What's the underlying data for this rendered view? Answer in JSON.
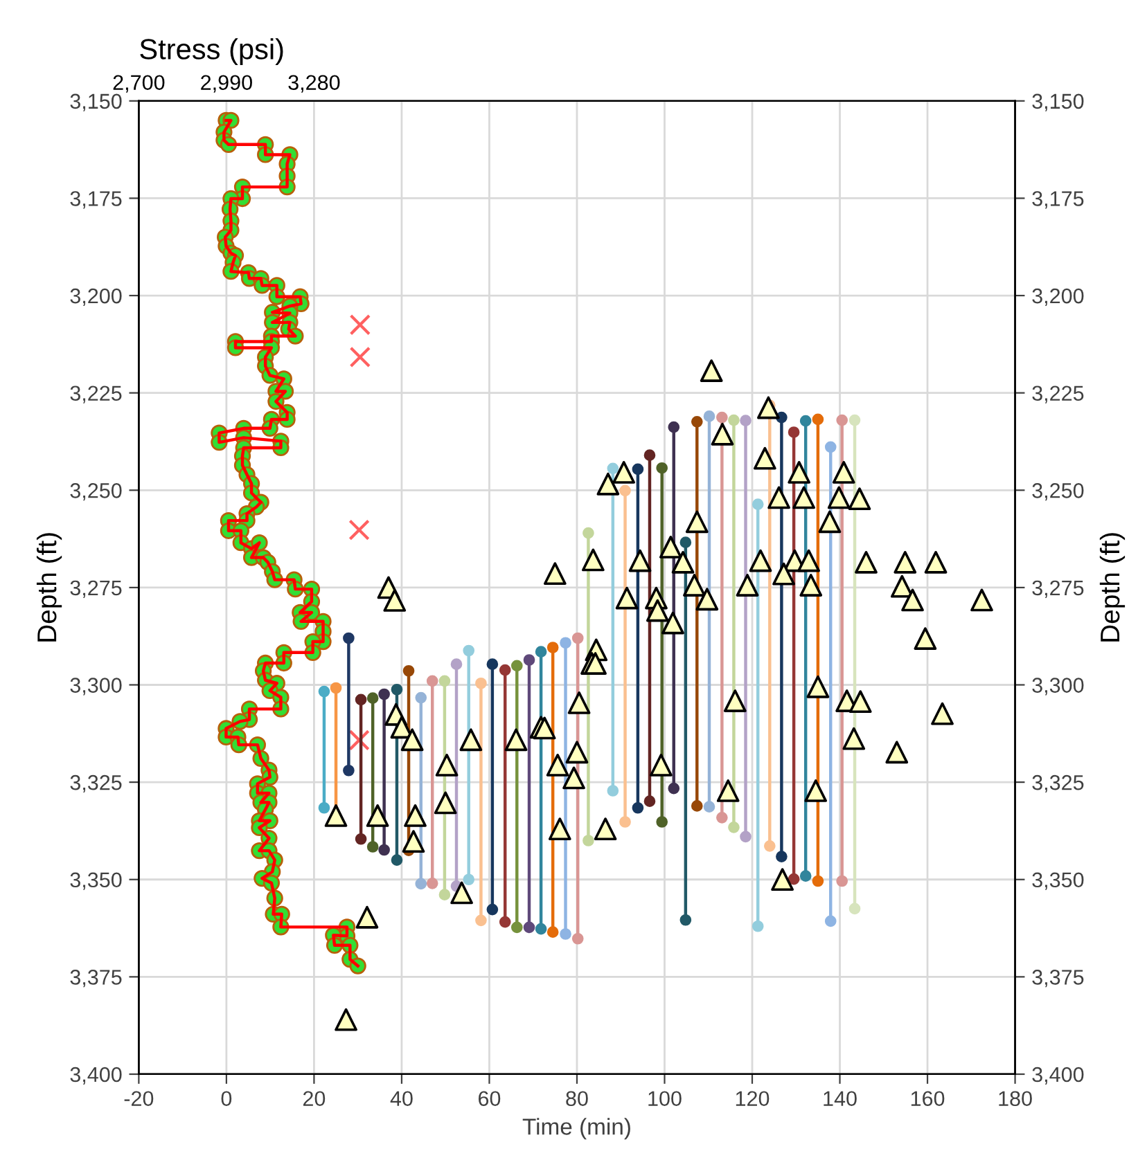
{
  "chart_data": {
    "type": "scatter",
    "xlabel": "Time (min)",
    "ylabel": "Depth (ft)",
    "y2label": "Depth (ft)",
    "x2label": "Stress (psi)",
    "xlim": [
      -20,
      180
    ],
    "xticks": [
      -20,
      0,
      20,
      40,
      60,
      80,
      100,
      120,
      140,
      160,
      180
    ],
    "ylim": [
      3400,
      3150
    ],
    "yticks": [
      {
        "value": 3150,
        "label": "3,150"
      },
      {
        "value": 3175,
        "label": "3,175"
      },
      {
        "value": 3200,
        "label": "3,200"
      },
      {
        "value": 3225,
        "label": "3,225"
      },
      {
        "value": 3250,
        "label": "3,250"
      },
      {
        "value": 3275,
        "label": "3,275"
      },
      {
        "value": 3300,
        "label": "3,300"
      },
      {
        "value": 3325,
        "label": "3,325"
      },
      {
        "value": 3350,
        "label": "3,350"
      },
      {
        "value": 3375,
        "label": "3,375"
      },
      {
        "value": 3400,
        "label": "3,400"
      }
    ],
    "y2lim": [
      3400,
      3150
    ],
    "y2ticks": [
      {
        "value": 3150,
        "label": "3,150"
      },
      {
        "value": 3175,
        "label": "3,175"
      },
      {
        "value": 3200,
        "label": "3,200"
      },
      {
        "value": 3225,
        "label": "3,225"
      },
      {
        "value": 3250,
        "label": "3,250"
      },
      {
        "value": 3275,
        "label": "3,275"
      },
      {
        "value": 3300,
        "label": "3,300"
      },
      {
        "value": 3325,
        "label": "3,325"
      },
      {
        "value": 3350,
        "label": "3,350"
      },
      {
        "value": 3375,
        "label": "3,375"
      },
      {
        "value": 3400,
        "label": "3,400"
      }
    ],
    "x2lim": [
      2700,
      5600
    ],
    "x2ticks": [
      {
        "value": 2700,
        "label": "2,700"
      },
      {
        "value": 2990,
        "label": "2,990"
      },
      {
        "value": 3280,
        "label": "3,280"
      }
    ],
    "grid": true,
    "series": [
      {
        "type": "scatter",
        "axis": "x2",
        "color": "#33dd33",
        "marker": "circle",
        "x": [
          2989,
          3005,
          2982,
          2982,
          2997,
          3119,
          3119,
          3200,
          3191,
          3191,
          3191,
          3043,
          3043,
          3005,
          3002,
          3005,
          3005,
          2986,
          2989,
          3005,
          3020,
          3012,
          3005,
          3063,
          3066,
          3104,
          3108,
          3157,
          3157,
          3234,
          3237,
          3200,
          3142,
          3200,
          3142,
          3200,
          3196,
          3218,
          3139,
          3139,
          3020,
          3020,
          3139,
          3119,
          3119,
          3134,
          3180,
          3154,
          3185,
          3154,
          3191,
          3191,
          3139,
          3134,
          3047,
          2966,
          2966,
          3047,
          3170,
          3170,
          3047,
          3043,
          3043,
          3058,
          3073,
          3073,
          3104,
          3089,
          3058,
          3058,
          2997,
          2997,
          3038,
          3038,
          3073,
          3099,
          3073,
          3112,
          3127,
          3142,
          3150,
          3214,
          3218,
          3272,
          3272,
          3234,
          3272,
          3237,
          3310,
          3310,
          3310,
          3276,
          3276,
          3180,
          3180,
          3119,
          3112,
          3119,
          3157,
          3134,
          3170,
          3170,
          3066,
          3066,
          3035,
          2989,
          2989,
          3028,
          3031,
          3093,
          3104,
          3131,
          3134,
          3093,
          3093,
          3131,
          3104,
          3131,
          3119,
          3099,
          3134,
          3099,
          3131,
          3099,
          3131,
          3150,
          3142,
          3108,
          3139,
          3150,
          3145,
          3173,
          3170,
          3389,
          3389,
          3344,
          3348,
          3399,
          3399,
          3425
        ],
        "values": [
          3155.0,
          3155.0,
          3158.0,
          3160.1,
          3161.2,
          3161.2,
          3163.8,
          3163.8,
          3166.2,
          3169.3,
          3172.1,
          3172.1,
          3175.1,
          3175.1,
          3177.8,
          3180.8,
          3183.2,
          3185.0,
          3187.3,
          3189.1,
          3189.7,
          3191.5,
          3193.8,
          3194.1,
          3195.6,
          3195.6,
          3197.4,
          3197.4,
          3200.3,
          3200.3,
          3202.1,
          3202.7,
          3204.3,
          3204.5,
          3206.9,
          3206.9,
          3208.6,
          3210.4,
          3210.4,
          3211.8,
          3211.8,
          3213.4,
          3213.4,
          3215.8,
          3218.1,
          3220.5,
          3221.4,
          3224.6,
          3224.6,
          3227.2,
          3230.0,
          3231.8,
          3231.8,
          3234.1,
          3234.1,
          3235.3,
          3237.7,
          3236.5,
          3237.4,
          3239.1,
          3239.1,
          3241.2,
          3243.6,
          3246.0,
          3248.3,
          3250.7,
          3253.1,
          3254.3,
          3256.0,
          3257.8,
          3257.8,
          3260.4,
          3260.4,
          3263.5,
          3265.0,
          3263.5,
          3267.3,
          3267.3,
          3268.5,
          3270.9,
          3273.0,
          3273.0,
          3275.4,
          3275.4,
          3278.6,
          3281.4,
          3281.4,
          3283.7,
          3283.7,
          3286.3,
          3288.9,
          3288.9,
          3291.7,
          3291.7,
          3294.4,
          3294.4,
          3296.4,
          3298.8,
          3299.6,
          3301.5,
          3303.2,
          3306.2,
          3306.2,
          3308.9,
          3309.4,
          3311.2,
          3313.4,
          3313.4,
          3315.4,
          3315.4,
          3318.9,
          3321.9,
          3323.7,
          3325.4,
          3327.8,
          3327.8,
          3330.2,
          3330.2,
          3332.0,
          3334.9,
          3334.9,
          3336.7,
          3339.4,
          3342.6,
          3342.6,
          3345.0,
          3348.0,
          3349.7,
          3350.9,
          3354.8,
          3358.9,
          3358.9,
          3362.2,
          3362.2,
          3364.5,
          3364.3,
          3366.9,
          3366.9,
          3370.5,
          3372.2
        ]
      },
      {
        "type": "line",
        "axis": "x2",
        "color": "#ff0000",
        "x": [
          2989,
          3005,
          2982,
          2982,
          2997,
          3119,
          3119,
          3200,
          3191,
          3191,
          3191,
          3043,
          3043,
          3005,
          3002,
          3005,
          3005,
          2986,
          2989,
          3005,
          3020,
          3012,
          3005,
          3063,
          3066,
          3104,
          3108,
          3157,
          3157,
          3234,
          3237,
          3200,
          3142,
          3200,
          3142,
          3200,
          3196,
          3218,
          3139,
          3139,
          3020,
          3020,
          3139,
          3119,
          3119,
          3134,
          3180,
          3154,
          3185,
          3154,
          3191,
          3191,
          3139,
          3134,
          3047,
          2966,
          2966,
          3047,
          3170,
          3170,
          3047,
          3043,
          3043,
          3058,
          3073,
          3073,
          3104,
          3089,
          3058,
          3058,
          2997,
          2997,
          3038,
          3038,
          3073,
          3099,
          3073,
          3112,
          3127,
          3142,
          3150,
          3214,
          3218,
          3272,
          3272,
          3234,
          3272,
          3237,
          3310,
          3310,
          3310,
          3276,
          3276,
          3180,
          3180,
          3119,
          3112,
          3119,
          3157,
          3134,
          3170,
          3170,
          3066,
          3066,
          3035,
          2989,
          2989,
          3028,
          3031,
          3093,
          3104,
          3131,
          3134,
          3093,
          3093,
          3131,
          3104,
          3131,
          3119,
          3099,
          3134,
          3099,
          3131,
          3099,
          3131,
          3150,
          3142,
          3108,
          3139,
          3150,
          3145,
          3173,
          3170,
          3389,
          3389,
          3344,
          3348,
          3399,
          3399,
          3425
        ],
        "values": [
          3155.0,
          3155.0,
          3158.0,
          3160.1,
          3161.2,
          3161.2,
          3163.8,
          3163.8,
          3166.2,
          3169.3,
          3172.1,
          3172.1,
          3175.1,
          3175.1,
          3177.8,
          3180.8,
          3183.2,
          3185.0,
          3187.3,
          3189.1,
          3189.7,
          3191.5,
          3193.8,
          3194.1,
          3195.6,
          3195.6,
          3197.4,
          3197.4,
          3200.3,
          3200.3,
          3202.1,
          3202.7,
          3204.3,
          3204.5,
          3206.9,
          3206.9,
          3208.6,
          3210.4,
          3210.4,
          3211.8,
          3211.8,
          3213.4,
          3213.4,
          3215.8,
          3218.1,
          3220.5,
          3221.4,
          3224.6,
          3224.6,
          3227.2,
          3230.0,
          3231.8,
          3231.8,
          3234.1,
          3234.1,
          3235.3,
          3237.7,
          3236.5,
          3237.4,
          3239.1,
          3239.1,
          3241.2,
          3243.6,
          3246.0,
          3248.3,
          3250.7,
          3253.1,
          3254.3,
          3256.0,
          3257.8,
          3257.8,
          3260.4,
          3260.4,
          3263.5,
          3265.0,
          3263.5,
          3267.3,
          3267.3,
          3268.5,
          3270.9,
          3273.0,
          3273.0,
          3275.4,
          3275.4,
          3278.6,
          3281.4,
          3281.4,
          3283.7,
          3283.7,
          3286.3,
          3288.9,
          3288.9,
          3291.7,
          3291.7,
          3294.4,
          3294.4,
          3296.4,
          3298.8,
          3299.6,
          3301.5,
          3303.2,
          3306.2,
          3306.2,
          3308.9,
          3309.4,
          3311.2,
          3313.4,
          3313.4,
          3315.4,
          3315.4,
          3318.9,
          3321.9,
          3323.7,
          3325.4,
          3327.8,
          3327.8,
          3330.2,
          3330.2,
          3332.0,
          3334.9,
          3334.9,
          3336.7,
          3339.4,
          3342.6,
          3342.6,
          3345.0,
          3348.0,
          3349.7,
          3350.9,
          3354.8,
          3358.9,
          3358.9,
          3362.2,
          3362.2,
          3364.5,
          3364.3,
          3366.9,
          3366.9,
          3370.5,
          3372.2
        ]
      },
      {
        "color": "#ff6060",
        "marker": "cross",
        "x": [
          30.5,
          30.5,
          30.3,
          30.3
        ],
        "values": [
          3207.5,
          3215.8,
          3260.2,
          3314.2
        ]
      },
      {
        "type": "line",
        "color": "#4bacc6",
        "marker": "circle",
        "x": [
          22.3,
          22.3
        ],
        "values": [
          3301.7,
          3331.6
        ]
      },
      {
        "type": "line",
        "color": "#f79646",
        "marker": "circle",
        "x": [
          25.0,
          25.0
        ],
        "values": [
          3300.8,
          3333.9
        ]
      },
      {
        "type": "line",
        "color": "#1f3864",
        "marker": "circle",
        "x": [
          27.9,
          27.9
        ],
        "values": [
          3288.0,
          3322.0
        ]
      },
      {
        "type": "line",
        "color": "#632523",
        "marker": "circle",
        "x": [
          30.7,
          30.7
        ],
        "values": [
          3303.8,
          3339.6
        ]
      },
      {
        "type": "line",
        "color": "#4f6228",
        "marker": "circle",
        "x": [
          33.4,
          33.4
        ],
        "values": [
          3303.4,
          3341.6
        ]
      },
      {
        "type": "line",
        "color": "#3f3151",
        "marker": "circle",
        "x": [
          36.0,
          36.0
        ],
        "values": [
          3302.4,
          3342.4
        ]
      },
      {
        "type": "line",
        "color": "#215967",
        "marker": "circle",
        "x": [
          38.9,
          38.9
        ],
        "values": [
          3301.2,
          3345.0
        ]
      },
      {
        "type": "line",
        "color": "#984807",
        "marker": "circle",
        "x": [
          41.6,
          41.6
        ],
        "values": [
          3296.4,
          3342.5
        ]
      },
      {
        "type": "line",
        "color": "#95b3d7",
        "marker": "circle",
        "x": [
          44.4,
          44.4
        ],
        "values": [
          3303.3,
          3351.1
        ]
      },
      {
        "type": "line",
        "color": "#d99694",
        "marker": "circle",
        "x": [
          47.0,
          47.0
        ],
        "values": [
          3299.0,
          3351.0
        ]
      },
      {
        "type": "line",
        "color": "#c3d69b",
        "marker": "circle",
        "x": [
          49.8,
          49.8
        ],
        "values": [
          3299.0,
          3353.9
        ]
      },
      {
        "type": "line",
        "color": "#b3a2c7",
        "marker": "circle",
        "x": [
          52.5,
          52.5
        ],
        "values": [
          3294.7,
          3351.7
        ]
      },
      {
        "type": "line",
        "color": "#93cddd",
        "marker": "circle",
        "x": [
          55.3,
          55.3
        ],
        "values": [
          3291.2,
          3350.0
        ]
      },
      {
        "type": "line",
        "color": "#fac090",
        "marker": "circle",
        "x": [
          58.1,
          58.1
        ],
        "values": [
          3299.6,
          3360.5
        ]
      },
      {
        "type": "line",
        "color": "#17375e",
        "marker": "circle",
        "x": [
          60.7,
          60.7
        ],
        "values": [
          3294.7,
          3357.7
        ]
      },
      {
        "type": "line",
        "color": "#953735",
        "marker": "circle",
        "x": [
          63.6,
          63.6
        ],
        "values": [
          3296.2,
          3360.9
        ]
      },
      {
        "type": "line",
        "color": "#76923c",
        "marker": "circle",
        "x": [
          66.3,
          66.3
        ],
        "values": [
          3295.1,
          3362.3
        ]
      },
      {
        "type": "line",
        "color": "#5f497a",
        "marker": "circle",
        "x": [
          69.1,
          69.1
        ],
        "values": [
          3293.6,
          3362.3
        ]
      },
      {
        "type": "line",
        "color": "#31859c",
        "marker": "circle",
        "x": [
          71.8,
          71.8
        ],
        "values": [
          3291.5,
          3362.7
        ]
      },
      {
        "type": "line",
        "color": "#e46c0a",
        "marker": "circle",
        "x": [
          74.5,
          74.5
        ],
        "values": [
          3290.4,
          3363.5
        ]
      },
      {
        "type": "line",
        "color": "#8eb4e3",
        "marker": "circle",
        "x": [
          77.4,
          77.4
        ],
        "values": [
          3289.2,
          3364.0
        ]
      },
      {
        "type": "line",
        "color": "#d99694",
        "marker": "circle",
        "x": [
          80.2,
          80.2
        ],
        "values": [
          3288.0,
          3365.2
        ]
      },
      {
        "type": "line",
        "color": "#c3d69b",
        "marker": "circle",
        "x": [
          82.6,
          82.6
        ],
        "values": [
          3261.0,
          3340.0
        ]
      },
      {
        "type": "line",
        "color": "#93cddd",
        "marker": "circle",
        "x": [
          88.2,
          88.2
        ],
        "values": [
          3244.4,
          3327.2
        ]
      },
      {
        "type": "line",
        "color": "#fac090",
        "marker": "circle",
        "x": [
          91.0,
          91.0
        ],
        "values": [
          3250.1,
          3335.2
        ]
      },
      {
        "type": "line",
        "color": "#17375e",
        "marker": "circle",
        "x": [
          93.9,
          93.9
        ],
        "values": [
          3244.6,
          3331.6
        ]
      },
      {
        "type": "line",
        "color": "#632523",
        "marker": "circle",
        "x": [
          96.6,
          96.6
        ],
        "values": [
          3241.0,
          3329.9
        ]
      },
      {
        "type": "line",
        "color": "#4f6228",
        "marker": "circle",
        "x": [
          99.4,
          99.4
        ],
        "values": [
          3244.3,
          3335.2
        ]
      },
      {
        "type": "line",
        "color": "#3f3151",
        "marker": "circle",
        "x": [
          102.1,
          102.1
        ],
        "values": [
          3233.8,
          3326.6
        ]
      },
      {
        "type": "line",
        "color": "#215967",
        "marker": "circle",
        "x": [
          104.8,
          104.8
        ],
        "values": [
          3263.4,
          3360.4
        ]
      },
      {
        "type": "line",
        "color": "#984807",
        "marker": "circle",
        "x": [
          107.4,
          107.4
        ],
        "values": [
          3232.4,
          3331.1
        ]
      },
      {
        "type": "line",
        "color": "#95b3d7",
        "marker": "circle",
        "x": [
          110.2,
          110.2
        ],
        "values": [
          3231.0,
          3331.3
        ]
      },
      {
        "type": "line",
        "color": "#d99694",
        "marker": "circle",
        "x": [
          113.1,
          113.1
        ],
        "values": [
          3231.3,
          3334.1
        ]
      },
      {
        "type": "line",
        "color": "#c3d69b",
        "marker": "circle",
        "x": [
          115.8,
          115.8
        ],
        "values": [
          3232.0,
          3336.6
        ]
      },
      {
        "type": "line",
        "color": "#b3a2c7",
        "marker": "circle",
        "x": [
          118.5,
          118.5
        ],
        "values": [
          3232.1,
          3339.0
        ]
      },
      {
        "type": "line",
        "color": "#93cddd",
        "marker": "circle",
        "x": [
          121.3,
          121.3
        ],
        "values": [
          3253.6,
          3362.0
        ]
      },
      {
        "type": "line",
        "color": "#fac090",
        "marker": "circle",
        "x": [
          124.0,
          124.0
        ],
        "values": [
          3228.2,
          3341.4
        ]
      },
      {
        "type": "line",
        "color": "#17375e",
        "marker": "circle",
        "x": [
          126.7,
          126.7
        ],
        "values": [
          3231.3,
          3344.1
        ]
      },
      {
        "type": "line",
        "color": "#953735",
        "marker": "circle",
        "x": [
          129.5,
          129.5
        ],
        "values": [
          3235.1,
          3349.9
        ]
      },
      {
        "type": "line",
        "color": "#31859c",
        "marker": "circle",
        "x": [
          132.2,
          132.2
        ],
        "values": [
          3232.2,
          3349.1
        ]
      },
      {
        "type": "line",
        "color": "#e46c0a",
        "marker": "circle",
        "x": [
          135.0,
          135.0
        ],
        "values": [
          3231.8,
          3350.4
        ]
      },
      {
        "type": "line",
        "color": "#8eb4e3",
        "marker": "circle",
        "x": [
          137.9,
          137.9
        ],
        "values": [
          3238.9,
          3360.7
        ]
      },
      {
        "type": "line",
        "color": "#d99694",
        "marker": "circle",
        "x": [
          140.5,
          140.5
        ],
        "values": [
          3232.0,
          3350.4
        ]
      },
      {
        "type": "line",
        "color": "#d7e4bd",
        "marker": "circle",
        "x": [
          143.4,
          143.4
        ],
        "values": [
          3232.0,
          3357.5
        ]
      },
      {
        "color": "#ffffc0",
        "marker": "triangle",
        "x": [
          37.0,
          38.4,
          38.7,
          40.0,
          42.4,
          25.0,
          34.5,
          43.1,
          42.7,
          50.3,
          50.0,
          55.8,
          53.7,
          66.1,
          71.8,
          72.6,
          75.6,
          76.1,
          75.0,
          80.0,
          79.3,
          80.5,
          83.7,
          84.4,
          83.4,
          84.2,
          86.5,
          32.1,
          27.3,
          110.7,
          123.7,
          113.2,
          122.9,
          87.1,
          90.7,
          130.7,
          140.9,
          126.1,
          131.8,
          139.8,
          107.4,
          137.7,
          94.4,
          101.4,
          104.2,
          121.9,
          129.7,
          132.9,
          127.2,
          106.8,
          118.9,
          133.4,
          91.4,
          98.1,
          98.4,
          109.7,
          101.9,
          116.1,
          135.0,
          141.6,
          143.2,
          99.2,
          114.5,
          134.5,
          126.9,
          144.5,
          146.0,
          154.9,
          161.9,
          154.2,
          156.6,
          172.4,
          159.5,
          144.7,
          163.4,
          153.0
        ],
        "values": [
          3275.0,
          3278.3,
          3307.6,
          3310.9,
          3314.1,
          3333.6,
          3333.6,
          3333.6,
          3340.2,
          3320.6,
          3330.3,
          3314.1,
          3353.4,
          3314.1,
          3310.9,
          3311.1,
          3320.6,
          3337.0,
          3271.4,
          3317.3,
          3323.9,
          3304.6,
          3267.9,
          3291.0,
          3294.5,
          3294.5,
          3337.0,
          3359.7,
          3386.0,
          3219.3,
          3228.8,
          3235.6,
          3241.8,
          3248.4,
          3245.4,
          3245.4,
          3245.4,
          3251.9,
          3251.9,
          3251.9,
          3258.1,
          3258.1,
          3268.1,
          3264.6,
          3268.5,
          3268.1,
          3268.1,
          3268.1,
          3271.5,
          3274.4,
          3274.4,
          3274.4,
          3277.7,
          3277.7,
          3280.9,
          3278.0,
          3284.1,
          3304.1,
          3300.5,
          3304.1,
          3313.8,
          3320.6,
          3327.2,
          3327.2,
          3350.0,
          3252.2,
          3268.5,
          3268.5,
          3268.5,
          3274.7,
          3278.2,
          3278.2,
          3288.1,
          3304.3,
          3307.4,
          3317.3
        ]
      }
    ]
  }
}
